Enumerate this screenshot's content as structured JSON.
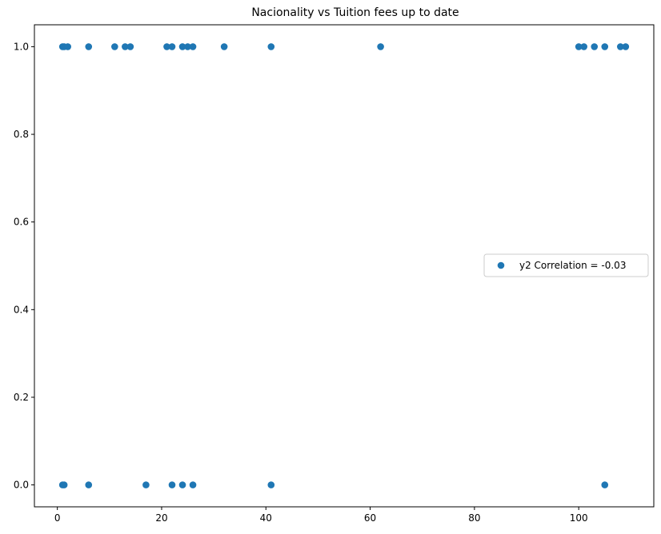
{
  "chart_data": {
    "type": "scatter",
    "title": "Nacionality vs Tuition fees up to date",
    "xlabel": "",
    "ylabel": "",
    "xlim": [
      -4.4,
      114.4
    ],
    "ylim": [
      -0.05,
      1.05
    ],
    "x_ticks": [
      0,
      20,
      40,
      60,
      80,
      100
    ],
    "y_ticks": [
      0.0,
      0.2,
      0.4,
      0.6,
      0.8,
      1.0
    ],
    "x_tick_labels": [
      "0",
      "20",
      "40",
      "60",
      "80",
      "100"
    ],
    "y_tick_labels": [
      "0.0",
      "0.2",
      "0.4",
      "0.6",
      "0.8",
      "1.0"
    ],
    "grid": false,
    "legend_position": "center-right",
    "series": [
      {
        "name": "y2 Correlation = -0.03",
        "color": "#1f77b4",
        "points": [
          [
            1,
            1
          ],
          [
            1.3,
            1
          ],
          [
            2,
            1
          ],
          [
            6,
            1
          ],
          [
            11,
            1
          ],
          [
            13,
            1
          ],
          [
            14,
            1
          ],
          [
            21,
            1
          ],
          [
            22,
            1
          ],
          [
            24,
            1
          ],
          [
            25,
            1
          ],
          [
            26,
            1
          ],
          [
            32,
            1
          ],
          [
            41,
            1
          ],
          [
            62,
            1
          ],
          [
            100,
            1
          ],
          [
            101,
            1
          ],
          [
            103,
            1
          ],
          [
            105,
            1
          ],
          [
            108,
            1
          ],
          [
            109,
            1
          ],
          [
            1,
            0
          ],
          [
            1.3,
            0
          ],
          [
            6,
            0
          ],
          [
            17,
            0
          ],
          [
            22,
            0
          ],
          [
            24,
            0
          ],
          [
            26,
            0
          ],
          [
            41,
            0
          ],
          [
            105,
            0
          ]
        ]
      }
    ]
  }
}
